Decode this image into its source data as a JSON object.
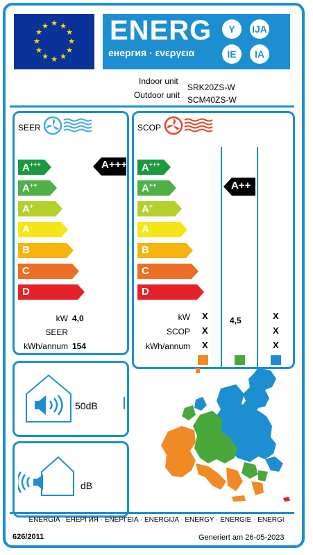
{
  "header": {
    "energy_word": "ENERG",
    "energy_sub": "енергия · ενεργεια",
    "badges": [
      "Y",
      "IJA",
      "IE",
      "IA"
    ]
  },
  "units": {
    "indoor_label": "Indoor unit",
    "indoor_value": "SRK20ZS-W",
    "outdoor_label": "Outdoor unit",
    "outdoor_value": "SCM40ZS-W"
  },
  "seer": {
    "title": "SEER",
    "rating": "A+++",
    "kw_label": "kW",
    "kw_value": "4,0",
    "seer_label": "SEER",
    "kwh_label": "kWh/annum",
    "kwh_value": "154"
  },
  "scop": {
    "title": "SCOP",
    "rating": "A++",
    "kw_label": "kW",
    "scop_label": "SCOP",
    "kwh_label": "kWh/annum",
    "col1": [
      "X",
      "X",
      "X"
    ],
    "col2_kw": "4,5",
    "col3": [
      "X",
      "X",
      "X"
    ],
    "zone_colors": [
      "#f08a24",
      "#4aa83a",
      "#1d8fd1"
    ]
  },
  "classes": [
    {
      "base": "A",
      "sup": "+++",
      "color": "#1a9a3c"
    },
    {
      "base": "A",
      "sup": "++",
      "color": "#4eb047"
    },
    {
      "base": "A",
      "sup": "+",
      "color": "#b5cf2b"
    },
    {
      "base": "A",
      "sup": "",
      "color": "#f5e61a"
    },
    {
      "base": "B",
      "sup": "",
      "color": "#f6b40f"
    },
    {
      "base": "C",
      "sup": "",
      "color": "#ec6f26"
    },
    {
      "base": "D",
      "sup": "",
      "color": "#e3222a"
    }
  ],
  "noise": {
    "indoor_value": "50dB",
    "outdoor_value": "dB"
  },
  "footer": {
    "languages": "ENERGIA · ЕНЕРГИЯ · ΕΝΕΡΓΕΙΑ · ENERGIJA · ENERGY · ENERGIE · ENERGI",
    "regulation": "626/2011",
    "generated": "Generiert am 26-05-2023"
  }
}
